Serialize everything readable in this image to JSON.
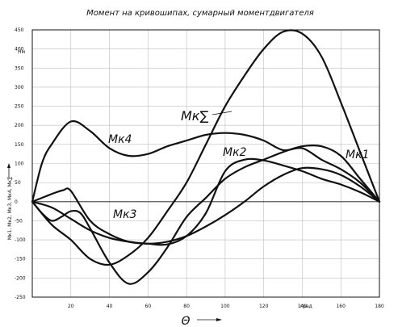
{
  "chart_data": {
    "type": "line",
    "title": "Момент на кривошипах, сумарный моментдвигателя",
    "xlabel": "Θ",
    "ylabel": "Мк1, Мк2, Мк3, Мк4, Мк∑",
    "y_unit": "Нм",
    "x_unit_note": "град",
    "xlim": [
      0,
      180
    ],
    "ylim": [
      -250,
      450
    ],
    "x_ticks": [
      20,
      40,
      60,
      80,
      100,
      120,
      140,
      160,
      180
    ],
    "y_ticks": [
      450,
      400,
      350,
      300,
      250,
      200,
      150,
      100,
      50,
      0,
      -50,
      -100,
      -150,
      -200,
      -250
    ],
    "grid": true,
    "series": [
      {
        "name": "Мк1",
        "x": [
          0,
          10,
          20,
          30,
          40,
          50,
          60,
          70,
          80,
          90,
          100,
          110,
          120,
          130,
          140,
          150,
          160,
          170,
          180
        ],
        "y": [
          0,
          -15,
          -45,
          -75,
          -95,
          -105,
          -110,
          -105,
          -90,
          -65,
          -35,
          0,
          40,
          70,
          88,
          85,
          70,
          40,
          0
        ]
      },
      {
        "name": "Мк2",
        "x": [
          0,
          5,
          10,
          16,
          20,
          30,
          40,
          50,
          60,
          70,
          80,
          90,
          100,
          110,
          120,
          130,
          140,
          150,
          160,
          170,
          180
        ],
        "y": [
          0,
          10,
          20,
          30,
          28,
          -50,
          -85,
          -105,
          -110,
          -112,
          -90,
          -30,
          80,
          110,
          108,
          95,
          80,
          60,
          45,
          25,
          0
        ]
      },
      {
        "name": "Мк3",
        "x": [
          0,
          5,
          10,
          15,
          20,
          25,
          30,
          40,
          50,
          60,
          70,
          80,
          90,
          100,
          110,
          120,
          130,
          140,
          150,
          160,
          170,
          180
        ],
        "y": [
          0,
          -30,
          -50,
          -40,
          -25,
          -30,
          -70,
          -160,
          -215,
          -185,
          -120,
          -40,
          10,
          60,
          90,
          110,
          130,
          145,
          145,
          120,
          60,
          0
        ]
      },
      {
        "name": "Мк4",
        "x": [
          0,
          5,
          10,
          20,
          30,
          40,
          50,
          60,
          70,
          80,
          90,
          100,
          110,
          120,
          130,
          140,
          150,
          160,
          170,
          180
        ],
        "y": [
          0,
          100,
          150,
          210,
          185,
          140,
          120,
          125,
          145,
          160,
          175,
          180,
          175,
          160,
          135,
          140,
          110,
          85,
          50,
          0
        ]
      },
      {
        "name": "Мк∑",
        "x": [
          0,
          10,
          20,
          30,
          40,
          50,
          60,
          70,
          80,
          90,
          100,
          110,
          120,
          130,
          140,
          150,
          160,
          170,
          180
        ],
        "y": [
          0,
          -60,
          -100,
          -150,
          -165,
          -140,
          -95,
          -25,
          50,
          150,
          250,
          330,
          400,
          445,
          440,
          380,
          260,
          130,
          0
        ]
      }
    ],
    "annotations": [
      "Мк∑",
      "Мк4",
      "Мк2",
      "Мк1",
      "Мк3",
      "град"
    ]
  }
}
